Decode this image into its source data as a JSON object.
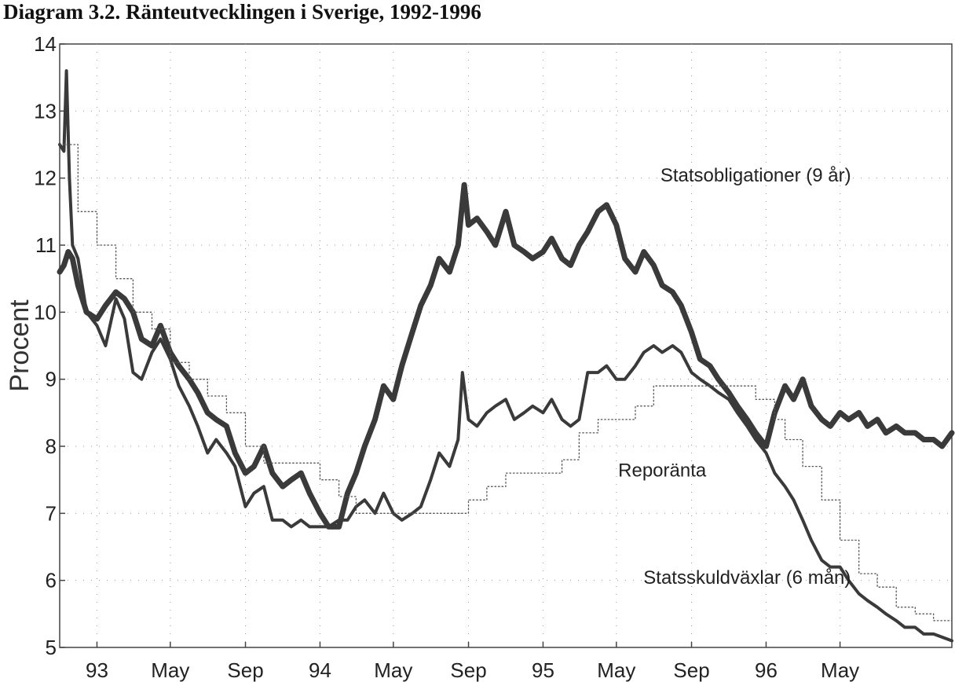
{
  "chart_data": {
    "type": "line",
    "title": "Diagram 3.2. Ränteutvecklingen i Sverige, 1992-1996",
    "xlabel": "",
    "ylabel": "Procent",
    "ylim": [
      5,
      14
    ],
    "xlim": [
      "1992-11-01",
      "1996-10-31"
    ],
    "yticks": [
      5,
      6,
      7,
      8,
      9,
      10,
      11,
      12,
      13,
      14
    ],
    "xticks": [
      {
        "date": "1993-01-01",
        "label": "93"
      },
      {
        "date": "1993-05-01",
        "label": "May"
      },
      {
        "date": "1993-09-01",
        "label": "Sep"
      },
      {
        "date": "1994-01-01",
        "label": "94"
      },
      {
        "date": "1994-05-01",
        "label": "May"
      },
      {
        "date": "1994-09-01",
        "label": "Sep"
      },
      {
        "date": "1995-01-01",
        "label": "95"
      },
      {
        "date": "1995-05-01",
        "label": "May"
      },
      {
        "date": "1995-09-01",
        "label": "Sep"
      },
      {
        "date": "1996-01-01",
        "label": "96"
      },
      {
        "date": "1996-05-01",
        "label": "May"
      }
    ],
    "grid": "dotted",
    "series": [
      {
        "name": "Statsobligationer (9 år)",
        "style": "thick",
        "color": "#3a3a3a",
        "points": [
          [
            "1992-11-01",
            10.6
          ],
          [
            "1992-11-08",
            10.7
          ],
          [
            "1992-11-15",
            10.9
          ],
          [
            "1992-11-22",
            10.8
          ],
          [
            "1992-12-01",
            10.4
          ],
          [
            "1992-12-15",
            10.0
          ],
          [
            "1993-01-01",
            9.9
          ],
          [
            "1993-01-15",
            10.1
          ],
          [
            "1993-02-01",
            10.3
          ],
          [
            "1993-02-15",
            10.2
          ],
          [
            "1993-03-01",
            10.0
          ],
          [
            "1993-03-15",
            9.6
          ],
          [
            "1993-04-01",
            9.5
          ],
          [
            "1993-04-15",
            9.8
          ],
          [
            "1993-05-01",
            9.4
          ],
          [
            "1993-05-15",
            9.2
          ],
          [
            "1993-06-01",
            9.0
          ],
          [
            "1993-06-15",
            8.8
          ],
          [
            "1993-07-01",
            8.5
          ],
          [
            "1993-07-15",
            8.4
          ],
          [
            "1993-08-01",
            8.3
          ],
          [
            "1993-08-15",
            7.9
          ],
          [
            "1993-09-01",
            7.6
          ],
          [
            "1993-09-15",
            7.7
          ],
          [
            "1993-10-01",
            8.0
          ],
          [
            "1993-10-15",
            7.6
          ],
          [
            "1993-11-01",
            7.4
          ],
          [
            "1993-11-15",
            7.5
          ],
          [
            "1993-12-01",
            7.6
          ],
          [
            "1993-12-15",
            7.3
          ],
          [
            "1994-01-01",
            7.0
          ],
          [
            "1994-01-15",
            6.8
          ],
          [
            "1994-02-01",
            6.8
          ],
          [
            "1994-02-15",
            7.3
          ],
          [
            "1994-03-01",
            7.6
          ],
          [
            "1994-03-15",
            8.0
          ],
          [
            "1994-04-01",
            8.4
          ],
          [
            "1994-04-15",
            8.9
          ],
          [
            "1994-05-01",
            8.7
          ],
          [
            "1994-05-15",
            9.2
          ],
          [
            "1994-06-01",
            9.7
          ],
          [
            "1994-06-15",
            10.1
          ],
          [
            "1994-07-01",
            10.4
          ],
          [
            "1994-07-15",
            10.8
          ],
          [
            "1994-08-01",
            10.6
          ],
          [
            "1994-08-15",
            11.0
          ],
          [
            "1994-08-25",
            11.9
          ],
          [
            "1994-09-01",
            11.3
          ],
          [
            "1994-09-15",
            11.4
          ],
          [
            "1994-10-01",
            11.2
          ],
          [
            "1994-10-15",
            11.0
          ],
          [
            "1994-11-01",
            11.5
          ],
          [
            "1994-11-15",
            11.0
          ],
          [
            "1994-12-01",
            10.9
          ],
          [
            "1994-12-15",
            10.8
          ],
          [
            "1995-01-01",
            10.9
          ],
          [
            "1995-01-15",
            11.1
          ],
          [
            "1995-02-01",
            10.8
          ],
          [
            "1995-02-15",
            10.7
          ],
          [
            "1995-03-01",
            11.0
          ],
          [
            "1995-03-15",
            11.2
          ],
          [
            "1995-04-01",
            11.5
          ],
          [
            "1995-04-15",
            11.6
          ],
          [
            "1995-05-01",
            11.3
          ],
          [
            "1995-05-15",
            10.8
          ],
          [
            "1995-06-01",
            10.6
          ],
          [
            "1995-06-15",
            10.9
          ],
          [
            "1995-07-01",
            10.7
          ],
          [
            "1995-07-15",
            10.4
          ],
          [
            "1995-08-01",
            10.3
          ],
          [
            "1995-08-15",
            10.1
          ],
          [
            "1995-09-01",
            9.7
          ],
          [
            "1995-09-15",
            9.3
          ],
          [
            "1995-10-01",
            9.2
          ],
          [
            "1995-10-15",
            9.0
          ],
          [
            "1995-11-01",
            8.8
          ],
          [
            "1995-11-15",
            8.6
          ],
          [
            "1995-12-01",
            8.4
          ],
          [
            "1995-12-15",
            8.2
          ],
          [
            "1996-01-01",
            8.0
          ],
          [
            "1996-01-15",
            8.5
          ],
          [
            "1996-02-01",
            8.9
          ],
          [
            "1996-02-15",
            8.7
          ],
          [
            "1996-03-01",
            9.0
          ],
          [
            "1996-03-15",
            8.6
          ],
          [
            "1996-04-01",
            8.4
          ],
          [
            "1996-04-15",
            8.3
          ],
          [
            "1996-05-01",
            8.5
          ],
          [
            "1996-05-15",
            8.4
          ],
          [
            "1996-06-01",
            8.5
          ],
          [
            "1996-06-15",
            8.3
          ],
          [
            "1996-07-01",
            8.4
          ],
          [
            "1996-07-15",
            8.2
          ],
          [
            "1996-08-01",
            8.3
          ],
          [
            "1996-08-15",
            8.2
          ],
          [
            "1996-09-01",
            8.2
          ],
          [
            "1996-09-15",
            8.1
          ],
          [
            "1996-10-01",
            8.1
          ],
          [
            "1996-10-15",
            8.0
          ],
          [
            "1996-10-31",
            8.2
          ]
        ]
      },
      {
        "name": "Statsskuldväxlar (6 mån)",
        "style": "medium",
        "color": "#3a3a3a",
        "points": [
          [
            "1992-11-01",
            12.5
          ],
          [
            "1992-11-08",
            12.4
          ],
          [
            "1992-11-12",
            13.6
          ],
          [
            "1992-11-17",
            12.0
          ],
          [
            "1992-11-22",
            11.0
          ],
          [
            "1992-12-01",
            10.8
          ],
          [
            "1992-12-15",
            10.0
          ],
          [
            "1993-01-01",
            9.8
          ],
          [
            "1993-01-15",
            9.5
          ],
          [
            "1993-02-01",
            10.2
          ],
          [
            "1993-02-15",
            9.9
          ],
          [
            "1993-03-01",
            9.1
          ],
          [
            "1993-03-15",
            9.0
          ],
          [
            "1993-04-01",
            9.4
          ],
          [
            "1993-04-15",
            9.6
          ],
          [
            "1993-05-01",
            9.3
          ],
          [
            "1993-05-15",
            8.9
          ],
          [
            "1993-06-01",
            8.6
          ],
          [
            "1993-06-15",
            8.3
          ],
          [
            "1993-07-01",
            7.9
          ],
          [
            "1993-07-15",
            8.1
          ],
          [
            "1993-08-01",
            7.9
          ],
          [
            "1993-08-15",
            7.7
          ],
          [
            "1993-09-01",
            7.1
          ],
          [
            "1993-09-15",
            7.3
          ],
          [
            "1993-10-01",
            7.4
          ],
          [
            "1993-10-15",
            6.9
          ],
          [
            "1993-11-01",
            6.9
          ],
          [
            "1993-11-15",
            6.8
          ],
          [
            "1993-12-01",
            6.9
          ],
          [
            "1993-12-15",
            6.8
          ],
          [
            "1994-01-01",
            6.8
          ],
          [
            "1994-01-15",
            6.8
          ],
          [
            "1994-02-01",
            6.9
          ],
          [
            "1994-02-15",
            6.9
          ],
          [
            "1994-03-01",
            7.1
          ],
          [
            "1994-03-15",
            7.2
          ],
          [
            "1994-04-01",
            7.0
          ],
          [
            "1994-04-15",
            7.3
          ],
          [
            "1994-05-01",
            7.0
          ],
          [
            "1994-05-15",
            6.9
          ],
          [
            "1994-06-01",
            7.0
          ],
          [
            "1994-06-15",
            7.1
          ],
          [
            "1994-07-01",
            7.5
          ],
          [
            "1994-07-15",
            7.9
          ],
          [
            "1994-08-01",
            7.7
          ],
          [
            "1994-08-15",
            8.1
          ],
          [
            "1994-08-22",
            9.1
          ],
          [
            "1994-09-01",
            8.4
          ],
          [
            "1994-09-15",
            8.3
          ],
          [
            "1994-10-01",
            8.5
          ],
          [
            "1994-10-15",
            8.6
          ],
          [
            "1994-11-01",
            8.7
          ],
          [
            "1994-11-15",
            8.4
          ],
          [
            "1994-12-01",
            8.5
          ],
          [
            "1994-12-15",
            8.6
          ],
          [
            "1995-01-01",
            8.5
          ],
          [
            "1995-01-15",
            8.7
          ],
          [
            "1995-02-01",
            8.4
          ],
          [
            "1995-02-15",
            8.3
          ],
          [
            "1995-03-01",
            8.4
          ],
          [
            "1995-03-15",
            9.1
          ],
          [
            "1995-04-01",
            9.1
          ],
          [
            "1995-04-15",
            9.2
          ],
          [
            "1995-05-01",
            9.0
          ],
          [
            "1995-05-15",
            9.0
          ],
          [
            "1995-06-01",
            9.2
          ],
          [
            "1995-06-15",
            9.4
          ],
          [
            "1995-07-01",
            9.5
          ],
          [
            "1995-07-15",
            9.4
          ],
          [
            "1995-08-01",
            9.5
          ],
          [
            "1995-08-15",
            9.4
          ],
          [
            "1995-09-01",
            9.1
          ],
          [
            "1995-09-15",
            9.0
          ],
          [
            "1995-10-01",
            8.9
          ],
          [
            "1995-10-15",
            8.8
          ],
          [
            "1995-11-01",
            8.7
          ],
          [
            "1995-11-15",
            8.5
          ],
          [
            "1995-12-01",
            8.3
          ],
          [
            "1995-12-15",
            8.1
          ],
          [
            "1996-01-01",
            7.9
          ],
          [
            "1996-01-15",
            7.6
          ],
          [
            "1996-02-01",
            7.4
          ],
          [
            "1996-02-15",
            7.2
          ],
          [
            "1996-03-01",
            6.9
          ],
          [
            "1996-03-15",
            6.6
          ],
          [
            "1996-04-01",
            6.3
          ],
          [
            "1996-04-15",
            6.2
          ],
          [
            "1996-05-01",
            6.2
          ],
          [
            "1996-05-15",
            6.0
          ],
          [
            "1996-06-01",
            5.8
          ],
          [
            "1996-06-15",
            5.7
          ],
          [
            "1996-07-01",
            5.6
          ],
          [
            "1996-07-15",
            5.5
          ],
          [
            "1996-08-01",
            5.4
          ],
          [
            "1996-08-15",
            5.3
          ],
          [
            "1996-09-01",
            5.3
          ],
          [
            "1996-09-15",
            5.2
          ],
          [
            "1996-10-01",
            5.2
          ],
          [
            "1996-10-31",
            5.1
          ]
        ]
      },
      {
        "name": "Reporänta",
        "style": "dotted-step",
        "color": "#555555",
        "points": [
          [
            "1992-11-01",
            12.5
          ],
          [
            "1992-12-01",
            11.5
          ],
          [
            "1993-01-01",
            11.0
          ],
          [
            "1993-02-01",
            10.5
          ],
          [
            "1993-03-01",
            10.0
          ],
          [
            "1993-04-01",
            9.75
          ],
          [
            "1993-05-01",
            9.25
          ],
          [
            "1993-06-01",
            9.0
          ],
          [
            "1993-07-01",
            8.75
          ],
          [
            "1993-08-01",
            8.5
          ],
          [
            "1993-09-01",
            8.0
          ],
          [
            "1993-10-01",
            7.75
          ],
          [
            "1994-01-01",
            7.5
          ],
          [
            "1994-02-01",
            7.25
          ],
          [
            "1994-03-01",
            7.0
          ],
          [
            "1994-09-01",
            7.2
          ],
          [
            "1994-10-01",
            7.4
          ],
          [
            "1994-11-01",
            7.6
          ],
          [
            "1995-01-01",
            7.6
          ],
          [
            "1995-02-01",
            7.8
          ],
          [
            "1995-03-01",
            8.2
          ],
          [
            "1995-04-01",
            8.4
          ],
          [
            "1995-06-01",
            8.6
          ],
          [
            "1995-07-01",
            8.9
          ],
          [
            "1995-12-15",
            8.7
          ],
          [
            "1996-01-15",
            8.4
          ],
          [
            "1996-02-01",
            8.1
          ],
          [
            "1996-03-01",
            7.7
          ],
          [
            "1996-04-01",
            7.2
          ],
          [
            "1996-05-01",
            6.6
          ],
          [
            "1996-06-01",
            6.1
          ],
          [
            "1996-07-01",
            5.9
          ],
          [
            "1996-08-01",
            5.6
          ],
          [
            "1996-09-01",
            5.5
          ],
          [
            "1996-10-01",
            5.4
          ],
          [
            "1996-10-31",
            5.3
          ]
        ]
      }
    ],
    "annotations": [
      {
        "text": "Statsobligationer (9 år)",
        "date": "1995-12-15",
        "y": 11.95
      },
      {
        "text": "Reporänta",
        "date": "1995-07-15",
        "y": 7.55
      },
      {
        "text": "Statsskuldväxlar (6 mån)",
        "date": "1995-12-01",
        "y": 5.95
      }
    ]
  }
}
